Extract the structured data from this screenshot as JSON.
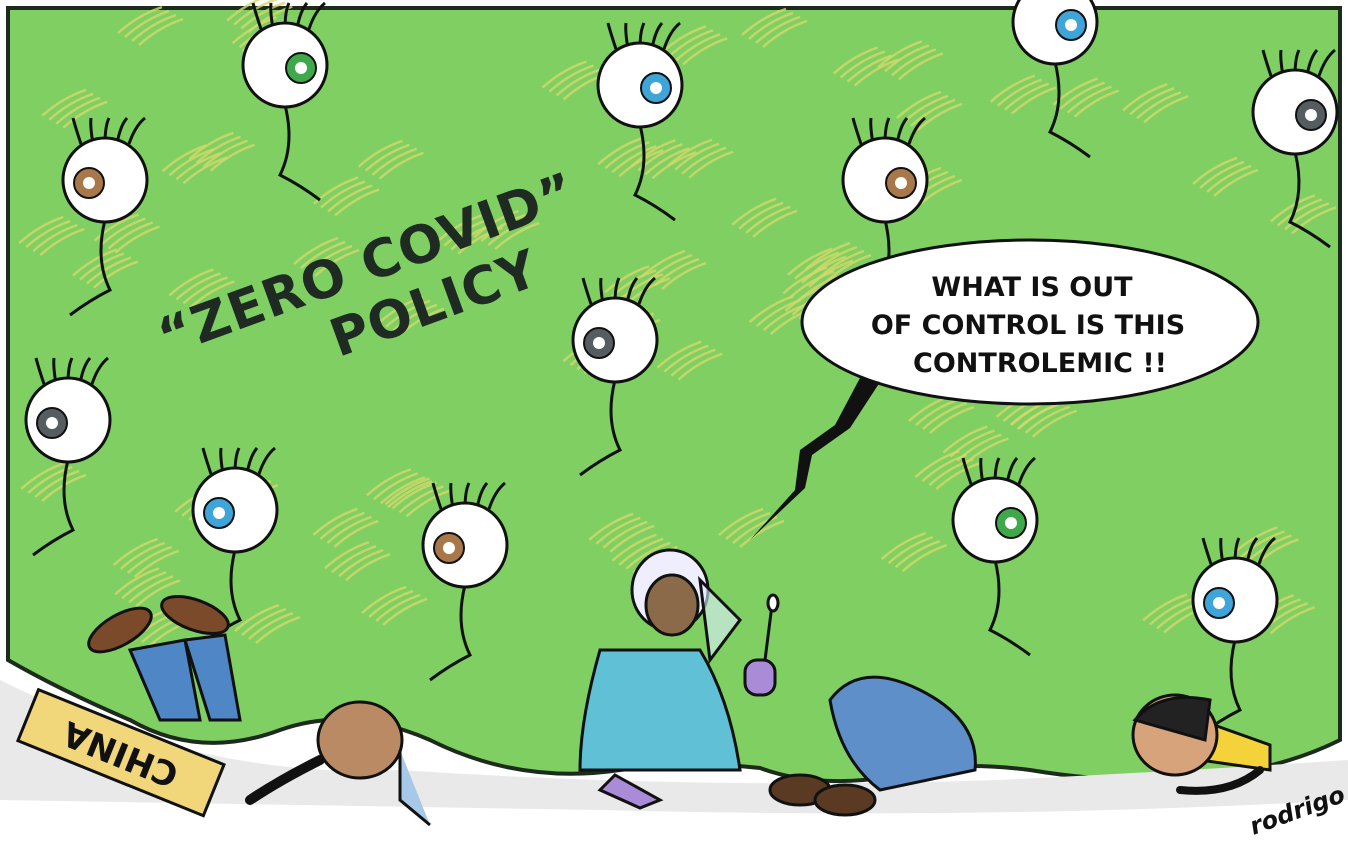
{
  "caption": {
    "line1": "“ZERO COVID”",
    "line2": "POLICY"
  },
  "speech": {
    "lines": [
      "WHAT IS OUT",
      "OF CONTROL IS THIS",
      "CONTROLEMIC !!"
    ]
  },
  "sign": "CHINA",
  "signature": "rodrigo"
}
